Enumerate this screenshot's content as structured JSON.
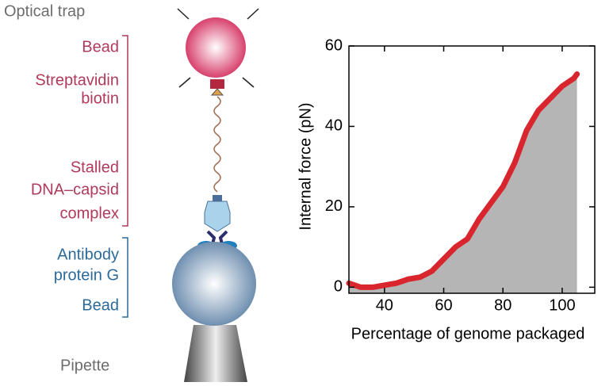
{
  "diagram": {
    "optical_trap": "Optical trap",
    "bead_top": "Bead",
    "streptavidin": [
      "Streptavidin",
      "biotin"
    ],
    "complex": [
      "Stalled",
      "DNA–capsid",
      "complex"
    ],
    "antibody": [
      "Antibody",
      "protein G"
    ],
    "bead_bottom": "Bead",
    "pipette": "Pipette"
  },
  "chart_data": {
    "type": "area",
    "x_label": "Percentage of genome packaged",
    "y_label": "Internal force (pN)",
    "x": [
      28,
      32,
      36,
      40,
      44,
      48,
      52,
      56,
      60,
      64,
      68,
      72,
      76,
      80,
      84,
      88,
      92,
      96,
      100,
      104,
      105
    ],
    "values": [
      1,
      0,
      0,
      0.5,
      1,
      2,
      2.5,
      4,
      7,
      10,
      12,
      17,
      21,
      25,
      31,
      39,
      44,
      47,
      50,
      52,
      53
    ],
    "color": "#d9262e",
    "fill": "#b5b5b5",
    "xlim": [
      28,
      111
    ],
    "xticks": [
      40,
      60,
      80,
      100
    ],
    "ylim": [
      -1.5,
      60
    ],
    "yticks": [
      0,
      20,
      40,
      60
    ]
  }
}
